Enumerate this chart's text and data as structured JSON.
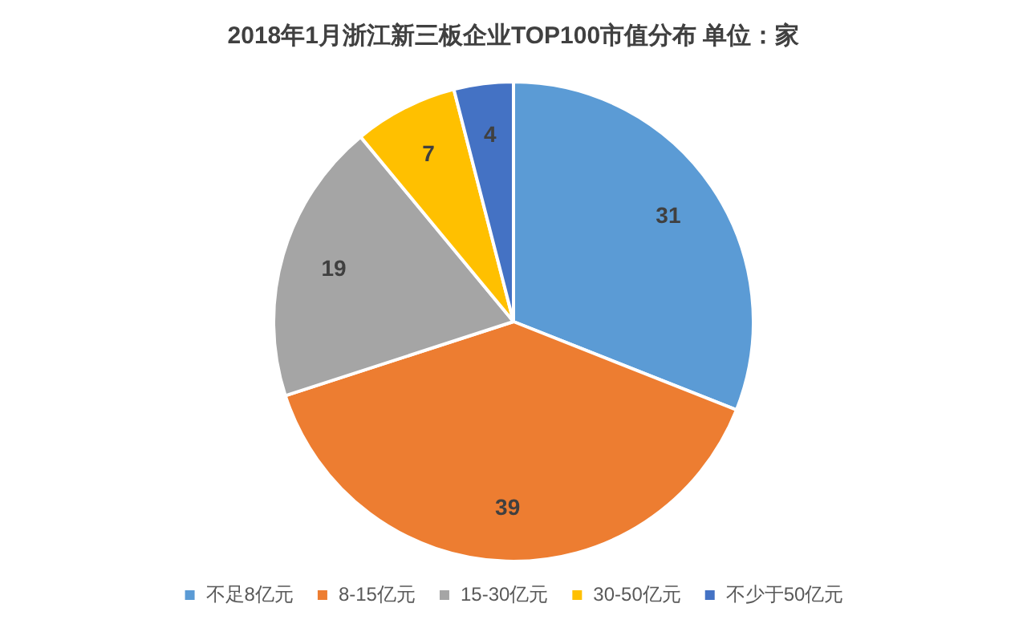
{
  "chart_data": {
    "type": "pie",
    "title": "2018年1月浙江新三板企业TOP100市值分布 单位：家",
    "categories": [
      "不足8亿元",
      "8-15亿元",
      "15-30亿元",
      "30-50亿元",
      "不少于50亿元"
    ],
    "values": [
      31,
      39,
      19,
      7,
      4
    ],
    "colors": [
      "#5b9bd5",
      "#ed7d31",
      "#a5a5a5",
      "#ffc000",
      "#4472c4"
    ],
    "data_labels": true,
    "legend": "bottom"
  }
}
